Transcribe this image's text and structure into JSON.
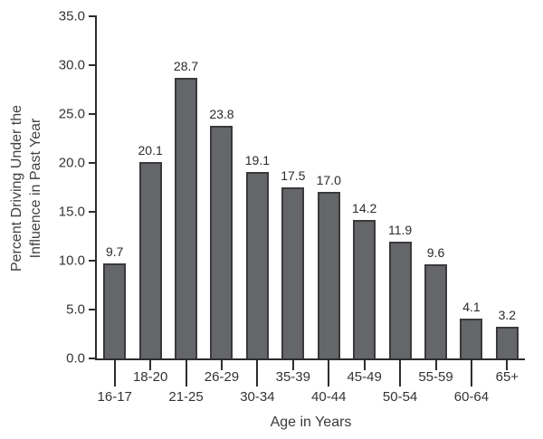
{
  "chart_data": {
    "type": "bar",
    "title": "",
    "categories": [
      "16-17",
      "18-20",
      "21-25",
      "26-29",
      "30-34",
      "35-39",
      "40-44",
      "45-49",
      "50-54",
      "55-59",
      "60-64",
      "65+"
    ],
    "values": [
      9.7,
      20.1,
      28.7,
      23.8,
      19.1,
      17.5,
      17.0,
      14.2,
      11.9,
      9.6,
      4.1,
      3.2
    ],
    "bar_value_labels": [
      "9.7",
      "20.1",
      "28.7",
      "23.8",
      "19.1",
      "17.5",
      "17.0",
      "14.2",
      "11.9",
      "9.6",
      "4.1",
      "3.2"
    ],
    "xlabel": "Age in Years",
    "ylabel_line1": "Percent Driving Under the",
    "ylabel_line2": "Influence in Past Year",
    "ylim": [
      0,
      35
    ],
    "ytick_step": 5,
    "ytick_labels": [
      "0.0",
      "5.0",
      "10.0",
      "15.0",
      "20.0",
      "25.0",
      "30.0",
      "35.0"
    ],
    "grid": false,
    "legend_position": "none",
    "colors": {
      "bar_fill": "#656669",
      "bar_border": "#3a3a3d",
      "axis": "#2d2d2f",
      "text": "#333333",
      "background": "#ffffff"
    }
  }
}
